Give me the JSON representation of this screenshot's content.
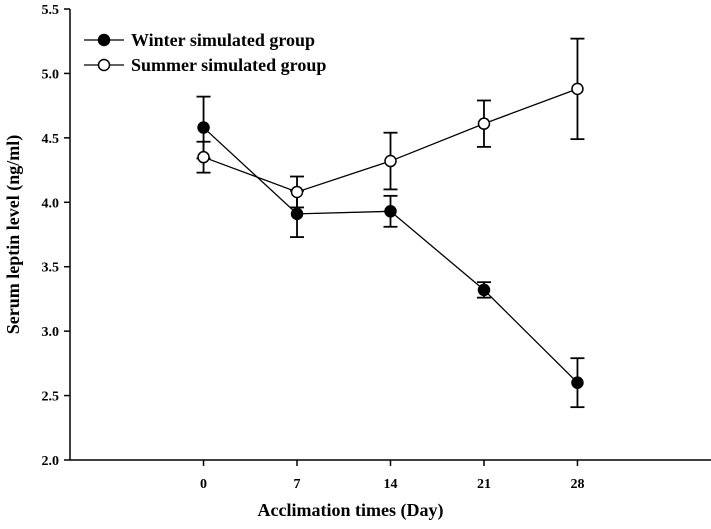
{
  "chart_data": {
    "type": "line",
    "title": "",
    "xlabel": "Acclimation times (Day)",
    "ylabel": "Serum leptin level (ng/ml)",
    "x": [
      0,
      7,
      14,
      21,
      28
    ],
    "xlim": [
      -10,
      38
    ],
    "ylim": [
      2.0,
      5.5
    ],
    "yticks": [
      "2.0",
      "2.5",
      "3.0",
      "3.5",
      "4.0",
      "4.5",
      "5.0",
      "5.5"
    ],
    "xticks": [
      "0",
      "7",
      "14",
      "21",
      "28"
    ],
    "grid": false,
    "legend_position": "top-left",
    "series": [
      {
        "name": "Winter simulated group",
        "marker": "filled-circle",
        "values": [
          4.58,
          3.91,
          3.93,
          3.32,
          2.6
        ],
        "errors": [
          0.24,
          0.18,
          0.12,
          0.06,
          0.19
        ]
      },
      {
        "name": "Summer simulated group",
        "marker": "open-circle",
        "values": [
          4.35,
          4.08,
          4.32,
          4.61,
          4.88
        ],
        "errors": [
          0.12,
          0.12,
          0.22,
          0.18,
          0.39
        ]
      }
    ],
    "colors": {
      "line": "#000000",
      "background": "#ffffff"
    }
  }
}
